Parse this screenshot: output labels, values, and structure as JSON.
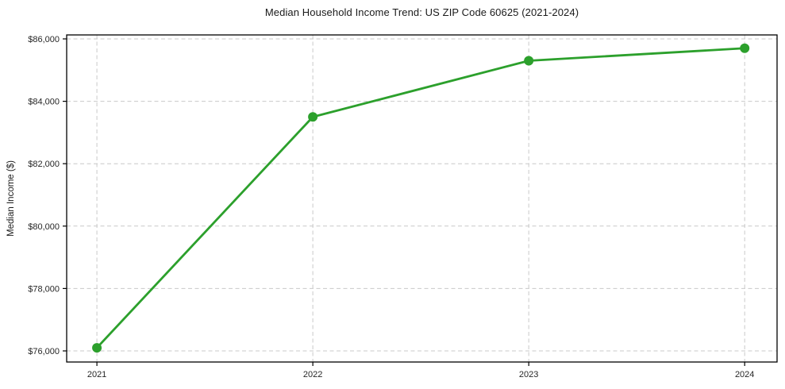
{
  "chart_data": {
    "type": "line",
    "title": "Median Household Income Trend: US ZIP Code 60625 (2021-2024)",
    "xlabel": "",
    "ylabel": "Median Income ($)",
    "x": [
      2021,
      2022,
      2023,
      2024
    ],
    "series": [
      {
        "name": "Median Household Income",
        "values": [
          76100,
          83500,
          85300,
          85700
        ],
        "color": "#2ca02c",
        "marker": "circle",
        "marker_size": 6,
        "line_width": 2.8
      }
    ],
    "x_tick_labels": [
      "2021",
      "2022",
      "2023",
      "2024"
    ],
    "y_ticks": [
      76000,
      78000,
      80000,
      82000,
      84000,
      86000
    ],
    "y_tick_labels": [
      "$76,000",
      "$78,000",
      "$80,000",
      "$82,000",
      "$84,000",
      "$86,000"
    ],
    "xlim": [
      2020.86,
      2024.15
    ],
    "ylim": [
      75644,
      86127
    ],
    "grid": true,
    "grid_style": "dashed",
    "grid_color": "#c9c9c9",
    "spine_color": "#000000",
    "text_color": "#262626",
    "background": "#ffffff",
    "legend": "none"
  }
}
